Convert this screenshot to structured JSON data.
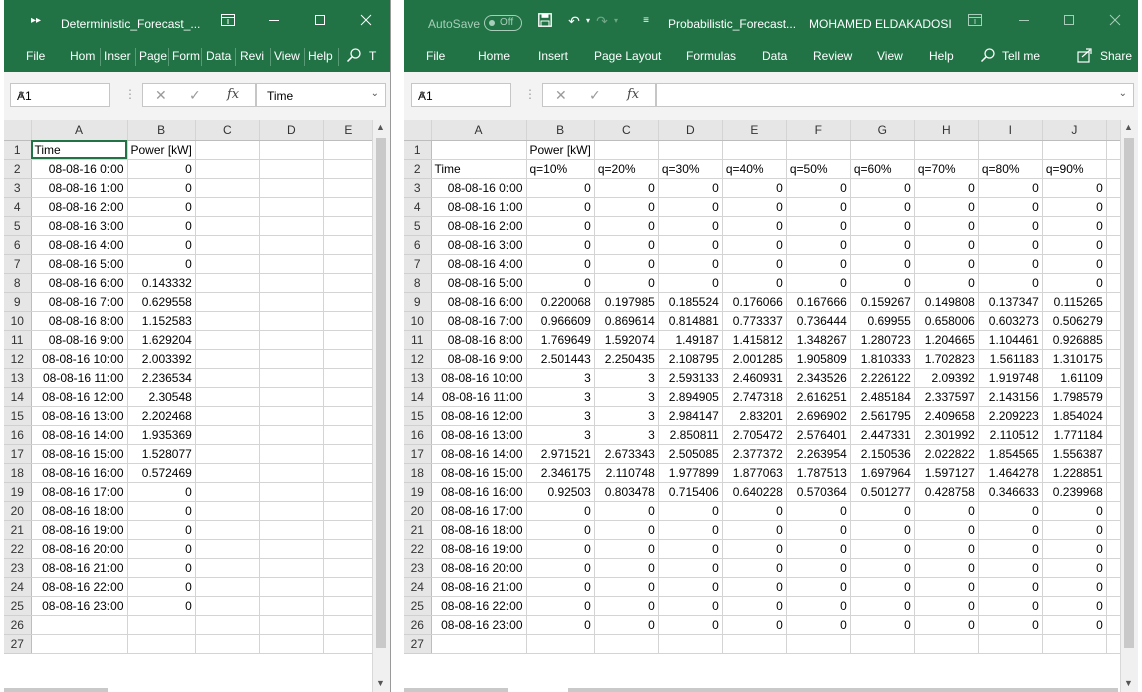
{
  "left": {
    "title_icon": "quick-access-arrows-icon",
    "title": "Deterministic_Forecast_...",
    "tabs": [
      "File",
      "Hom",
      "Inser",
      "Page",
      "Form",
      "Data",
      "Revi",
      "View",
      "Help"
    ],
    "tell_truncated": "T",
    "namebox": "A1",
    "formula": "Time",
    "columns": [
      "A",
      "B",
      "C",
      "D",
      "E"
    ],
    "rows": [
      [
        "Time",
        "Power [kW]"
      ],
      [
        "08-08-16 0:00",
        "0"
      ],
      [
        "08-08-16 1:00",
        "0"
      ],
      [
        "08-08-16 2:00",
        "0"
      ],
      [
        "08-08-16 3:00",
        "0"
      ],
      [
        "08-08-16 4:00",
        "0"
      ],
      [
        "08-08-16 5:00",
        "0"
      ],
      [
        "08-08-16 6:00",
        "0.143332"
      ],
      [
        "08-08-16 7:00",
        "0.629558"
      ],
      [
        "08-08-16 8:00",
        "1.152583"
      ],
      [
        "08-08-16 9:00",
        "1.629204"
      ],
      [
        "08-08-16 10:00",
        "2.003392"
      ],
      [
        "08-08-16 11:00",
        "2.236534"
      ],
      [
        "08-08-16 12:00",
        "2.30548"
      ],
      [
        "08-08-16 13:00",
        "2.202468"
      ],
      [
        "08-08-16 14:00",
        "1.935369"
      ],
      [
        "08-08-16 15:00",
        "1.528077"
      ],
      [
        "08-08-16 16:00",
        "0.572469"
      ],
      [
        "08-08-16 17:00",
        "0"
      ],
      [
        "08-08-16 18:00",
        "0"
      ],
      [
        "08-08-16 19:00",
        "0"
      ],
      [
        "08-08-16 20:00",
        "0"
      ],
      [
        "08-08-16 21:00",
        "0"
      ],
      [
        "08-08-16 22:00",
        "0"
      ],
      [
        "08-08-16 23:00",
        "0"
      ],
      [
        "",
        ""
      ],
      [
        "",
        ""
      ]
    ]
  },
  "right": {
    "autosave_label": "AutoSave",
    "autosave_state": "Off",
    "title": "Probabilistic_Forecast...",
    "user": "MOHAMED ELDAKADOSI",
    "tabs": [
      "File",
      "Home",
      "Insert",
      "Page Layout",
      "Formulas",
      "Data",
      "Review",
      "View",
      "Help"
    ],
    "tell_me": "Tell me",
    "share": "Share",
    "namebox": "A1",
    "formula": "",
    "columns": [
      "A",
      "B",
      "C",
      "D",
      "E",
      "F",
      "G",
      "H",
      "I",
      "J"
    ],
    "rows": [
      [
        "",
        "Power [kW]",
        "",
        "",
        "",
        "",
        "",
        "",
        "",
        ""
      ],
      [
        "Time",
        "q=10%",
        "q=20%",
        "q=30%",
        "q=40%",
        "q=50%",
        "q=60%",
        "q=70%",
        "q=80%",
        "q=90%"
      ],
      [
        "08-08-16 0:00",
        "0",
        "0",
        "0",
        "0",
        "0",
        "0",
        "0",
        "0",
        "0"
      ],
      [
        "08-08-16 1:00",
        "0",
        "0",
        "0",
        "0",
        "0",
        "0",
        "0",
        "0",
        "0"
      ],
      [
        "08-08-16 2:00",
        "0",
        "0",
        "0",
        "0",
        "0",
        "0",
        "0",
        "0",
        "0"
      ],
      [
        "08-08-16 3:00",
        "0",
        "0",
        "0",
        "0",
        "0",
        "0",
        "0",
        "0",
        "0"
      ],
      [
        "08-08-16 4:00",
        "0",
        "0",
        "0",
        "0",
        "0",
        "0",
        "0",
        "0",
        "0"
      ],
      [
        "08-08-16 5:00",
        "0",
        "0",
        "0",
        "0",
        "0",
        "0",
        "0",
        "0",
        "0"
      ],
      [
        "08-08-16 6:00",
        "0.220068",
        "0.197985",
        "0.185524",
        "0.176066",
        "0.167666",
        "0.159267",
        "0.149808",
        "0.137347",
        "0.115265"
      ],
      [
        "08-08-16 7:00",
        "0.966609",
        "0.869614",
        "0.814881",
        "0.773337",
        "0.736444",
        "0.69955",
        "0.658006",
        "0.603273",
        "0.506279"
      ],
      [
        "08-08-16 8:00",
        "1.769649",
        "1.592074",
        "1.49187",
        "1.415812",
        "1.348267",
        "1.280723",
        "1.204665",
        "1.104461",
        "0.926885"
      ],
      [
        "08-08-16 9:00",
        "2.501443",
        "2.250435",
        "2.108795",
        "2.001285",
        "1.905809",
        "1.810333",
        "1.702823",
        "1.561183",
        "1.310175"
      ],
      [
        "08-08-16 10:00",
        "3",
        "3",
        "2.593133",
        "2.460931",
        "2.343526",
        "2.226122",
        "2.09392",
        "1.919748",
        "1.61109"
      ],
      [
        "08-08-16 11:00",
        "3",
        "3",
        "2.894905",
        "2.747318",
        "2.616251",
        "2.485184",
        "2.337597",
        "2.143156",
        "1.798579"
      ],
      [
        "08-08-16 12:00",
        "3",
        "3",
        "2.984147",
        "2.83201",
        "2.696902",
        "2.561795",
        "2.409658",
        "2.209223",
        "1.854024"
      ],
      [
        "08-08-16 13:00",
        "3",
        "3",
        "2.850811",
        "2.705472",
        "2.576401",
        "2.447331",
        "2.301992",
        "2.110512",
        "1.771184"
      ],
      [
        "08-08-16 14:00",
        "2.971521",
        "2.673343",
        "2.505085",
        "2.377372",
        "2.263954",
        "2.150536",
        "2.022822",
        "1.854565",
        "1.556387"
      ],
      [
        "08-08-16 15:00",
        "2.346175",
        "2.110748",
        "1.977899",
        "1.877063",
        "1.787513",
        "1.697964",
        "1.597127",
        "1.464278",
        "1.228851"
      ],
      [
        "08-08-16 16:00",
        "0.92503",
        "0.803478",
        "0.715406",
        "0.640228",
        "0.570364",
        "0.501277",
        "0.428758",
        "0.346633",
        "0.239968"
      ],
      [
        "08-08-16 17:00",
        "0",
        "0",
        "0",
        "0",
        "0",
        "0",
        "0",
        "0",
        "0"
      ],
      [
        "08-08-16 18:00",
        "0",
        "0",
        "0",
        "0",
        "0",
        "0",
        "0",
        "0",
        "0"
      ],
      [
        "08-08-16 19:00",
        "0",
        "0",
        "0",
        "0",
        "0",
        "0",
        "0",
        "0",
        "0"
      ],
      [
        "08-08-16 20:00",
        "0",
        "0",
        "0",
        "0",
        "0",
        "0",
        "0",
        "0",
        "0"
      ],
      [
        "08-08-16 21:00",
        "0",
        "0",
        "0",
        "0",
        "0",
        "0",
        "0",
        "0",
        "0"
      ],
      [
        "08-08-16 22:00",
        "0",
        "0",
        "0",
        "0",
        "0",
        "0",
        "0",
        "0",
        "0"
      ],
      [
        "08-08-16 23:00",
        "0",
        "0",
        "0",
        "0",
        "0",
        "0",
        "0",
        "0",
        "0"
      ],
      [
        "",
        "",
        "",
        "",
        "",
        "",
        "",
        "",
        "",
        ""
      ]
    ]
  }
}
